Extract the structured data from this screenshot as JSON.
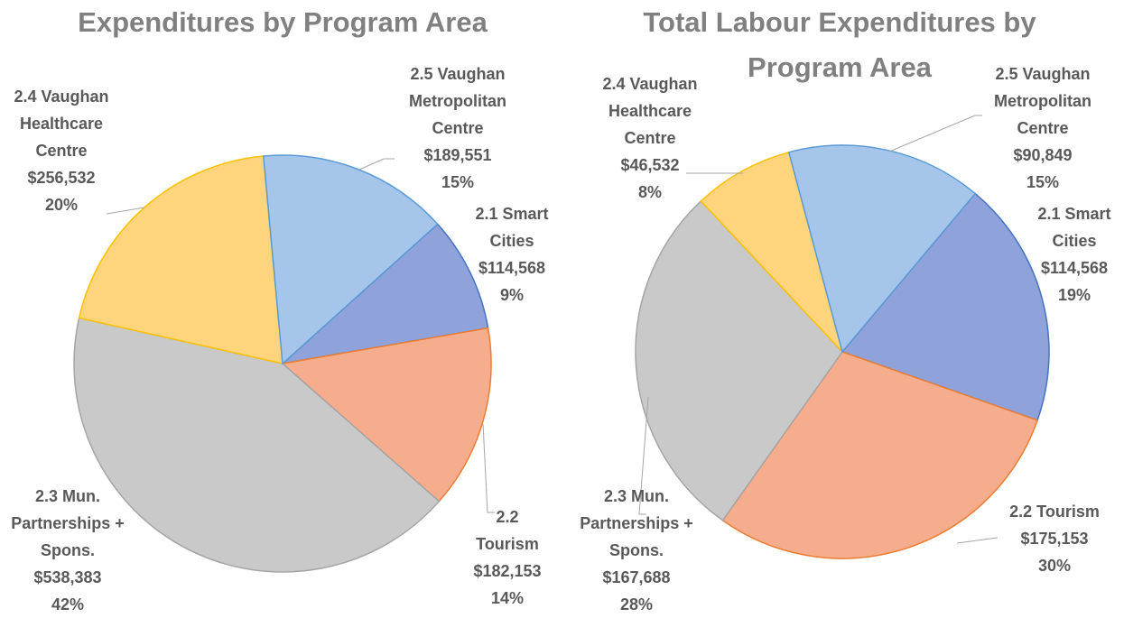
{
  "chart_data": [
    {
      "type": "pie",
      "title": "Expenditures by Program Area",
      "categories": [
        "2.1 Smart Cities",
        "2.2 Tourism",
        "2.3 Mun. Partnerships + Spons.",
        "2.4 Vaughan Healthcare Centre",
        "2.5 Vaughan Metropolitan Centre"
      ],
      "values": [
        114568,
        182153,
        538383,
        256532,
        189551
      ],
      "value_labels": [
        "$114,568",
        "$182,153",
        "$538,383",
        "$256,532",
        "$189,551"
      ],
      "percent_labels": [
        "9%",
        "14%",
        "42%",
        "20%",
        "15%"
      ],
      "colors": [
        "#8fa3da",
        "#f5ad8e",
        "#c9c9c9",
        "#fed47c",
        "#a6c5ea"
      ],
      "edge_colors": [
        "#4472c4",
        "#ed7d31",
        "#a5a5a5",
        "#ffc000",
        "#5b9bd5"
      ]
    },
    {
      "type": "pie",
      "title": "Total Labour Expenditures by Program Area",
      "categories": [
        "2.1 Smart Cities",
        "2.2 Tourism",
        "2.3 Mun. Partnerships + Spons.",
        "2.4 Vaughan Healthcare Centre",
        "2.5 Vaughan Metropolitan Centre"
      ],
      "values": [
        114568,
        175153,
        167688,
        46532,
        90849
      ],
      "value_labels": [
        "$114,568",
        "$175,153",
        "$167,688",
        "$46,532",
        "$90,849"
      ],
      "percent_labels": [
        "19%",
        "30%",
        "28%",
        "8%",
        "15%"
      ],
      "colors": [
        "#8fa3da",
        "#f5ad8e",
        "#c9c9c9",
        "#fed47c",
        "#a6c5ea"
      ],
      "edge_colors": [
        "#4472c4",
        "#ed7d31",
        "#a5a5a5",
        "#ffc000",
        "#5b9bd5"
      ]
    }
  ]
}
